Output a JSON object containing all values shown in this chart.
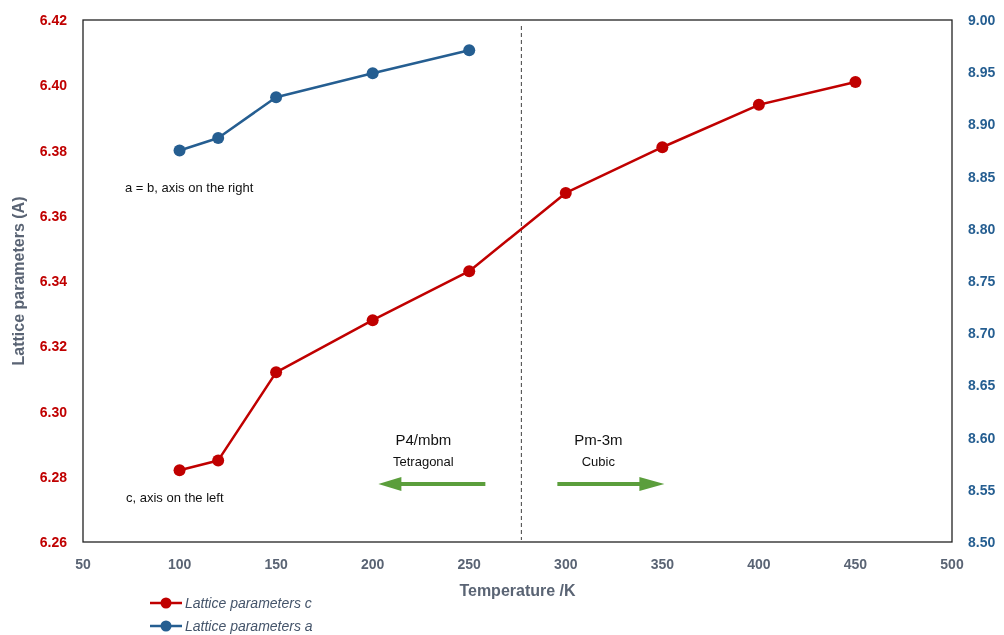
{
  "chart_data": {
    "type": "line",
    "xlabel": "Temperature /K",
    "ylabel": "Lattice parameters (A)",
    "x": [
      100,
      120,
      150,
      200,
      250,
      300,
      350,
      400,
      450
    ],
    "series": [
      {
        "name": "Lattice parameters c",
        "color": "#c00000",
        "values": [
          6.282,
          6.285,
          6.312,
          6.328,
          6.343,
          6.367,
          6.381,
          6.394,
          6.401
        ]
      },
      {
        "name": "Lattice parameters a",
        "color": "#255e91",
        "axis": "y2",
        "x": [
          100,
          120,
          150,
          200,
          250
        ],
        "values": [
          8.875,
          8.887,
          8.926,
          8.949,
          8.971
        ]
      }
    ],
    "xlim": [
      50,
      500
    ],
    "xticks": [
      50,
      100,
      150,
      200,
      250,
      300,
      350,
      400,
      450,
      500
    ],
    "ylim": [
      6.26,
      6.42
    ],
    "yticks": [
      {
        "value": 6.26,
        "label": "6.26"
      },
      {
        "value": 6.28,
        "label": "6.28"
      },
      {
        "value": 6.3,
        "label": "6.30"
      },
      {
        "value": 6.32,
        "label": "6.32"
      },
      {
        "value": 6.34,
        "label": "6.34"
      },
      {
        "value": 6.36,
        "label": "6.36"
      },
      {
        "value": 6.38,
        "label": "6.38"
      },
      {
        "value": 6.4,
        "label": "6.40"
      },
      {
        "value": 6.42,
        "label": "6.42"
      }
    ],
    "y2lim": [
      8.5,
      9.0
    ],
    "y2ticks": [
      {
        "value": 8.5,
        "label": "8.50"
      },
      {
        "value": 8.55,
        "label": "8.55"
      },
      {
        "value": 8.6,
        "label": "8.60"
      },
      {
        "value": 8.65,
        "label": "8.65"
      },
      {
        "value": 8.7,
        "label": "8.70"
      },
      {
        "value": 8.75,
        "label": "8.75"
      },
      {
        "value": 8.8,
        "label": "8.80"
      },
      {
        "value": 8.85,
        "label": "8.85"
      },
      {
        "value": 8.9,
        "label": "8.90"
      },
      {
        "value": 8.95,
        "label": "8.95"
      },
      {
        "value": 9.0,
        "label": "9.00"
      }
    ],
    "ref_lines": [
      {
        "axis": "x",
        "value": 277,
        "color": "#404040",
        "line_style": "dashed"
      }
    ],
    "annotations": [
      "a = b, axis on the right",
      "c, axis on the left",
      "P4/mbm",
      "Tetragonal",
      "Pm-3m",
      "Cubic"
    ],
    "marker": "circle",
    "line_style": "solid",
    "grid": false,
    "legend": "bottom"
  }
}
